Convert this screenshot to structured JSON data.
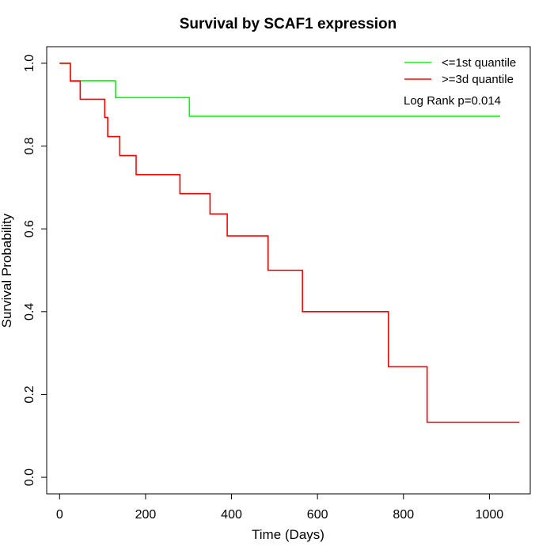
{
  "chart_data": {
    "type": "line",
    "title": "Survival by SCAF1 expression",
    "xlabel": "Time (Days)",
    "ylabel": "Survival Probability",
    "xlim": [
      -30,
      1095
    ],
    "ylim": [
      -0.04,
      1.04
    ],
    "x_ticks": [
      0,
      200,
      400,
      600,
      800,
      1000
    ],
    "x_tick_labels": [
      "0",
      "200",
      "400",
      "600",
      "800",
      "1000"
    ],
    "y_ticks": [
      0.0,
      0.2,
      0.4,
      0.6,
      0.8,
      1.0
    ],
    "y_tick_labels": [
      "0.0",
      "0.2",
      "0.4",
      "0.6",
      "0.8",
      "1.0"
    ],
    "legend_position": "top-right",
    "annotation": "Log Rank p=0.014",
    "grid": false,
    "step": true,
    "series": [
      {
        "name": "<=1st quantile",
        "color": "#00ff00",
        "x": [
          0,
          25,
          130,
          302,
          1025
        ],
        "y": [
          1.0,
          0.958,
          0.917,
          0.872,
          0.872
        ]
      },
      {
        "name": ">=3d quantile",
        "color": "#ff0000",
        "x": [
          0,
          25,
          48,
          105,
          112,
          140,
          178,
          280,
          350,
          390,
          485,
          565,
          765,
          855,
          1070
        ],
        "y": [
          1.0,
          0.957,
          0.913,
          0.869,
          0.823,
          0.777,
          0.731,
          0.685,
          0.636,
          0.583,
          0.5,
          0.4,
          0.267,
          0.133,
          0.133
        ]
      }
    ]
  }
}
